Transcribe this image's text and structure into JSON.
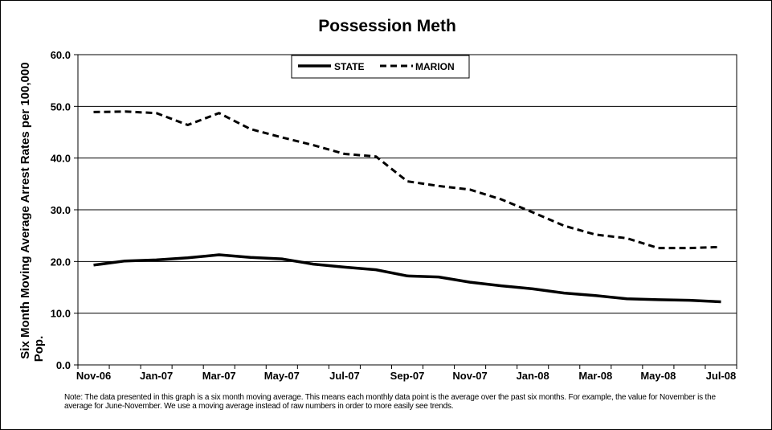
{
  "chart_data": {
    "type": "line",
    "title": "Possession Meth",
    "ylabel": "Six Month Moving Average Arrest Rates per 100,000 Pop.",
    "ylim": [
      0,
      60
    ],
    "yticks": [
      "0.0",
      "10.0",
      "20.0",
      "30.0",
      "40.0",
      "50.0",
      "60.0"
    ],
    "grid": true,
    "legend_position": "top-center",
    "x": [
      "Nov-06",
      "Dec-06",
      "Jan-07",
      "Feb-07",
      "Mar-07",
      "Apr-07",
      "May-07",
      "Jun-07",
      "Jul-07",
      "Aug-07",
      "Sep-07",
      "Oct-07",
      "Nov-07",
      "Dec-07",
      "Jan-08",
      "Feb-08",
      "Mar-08",
      "Apr-08",
      "May-08",
      "Jun-08",
      "Jul-08"
    ],
    "xtick_labels": [
      "Nov-06",
      "",
      "Jan-07",
      "",
      "Mar-07",
      "",
      "May-07",
      "",
      "Jul-07",
      "",
      "Sep-07",
      "",
      "Nov-07",
      "",
      "Jan-08",
      "",
      "Mar-08",
      "",
      "May-08",
      "",
      "Jul-08"
    ],
    "series": [
      {
        "name": "STATE",
        "style": "solid",
        "color": "#000000",
        "values": [
          19.3,
          20.1,
          20.3,
          20.7,
          21.3,
          20.8,
          20.5,
          19.5,
          18.9,
          18.4,
          17.2,
          17.0,
          16.0,
          15.3,
          14.7,
          13.9,
          13.4,
          12.8,
          12.6,
          12.5,
          12.2
        ]
      },
      {
        "name": "MARION",
        "style": "dashed",
        "color": "#000000",
        "values": [
          48.9,
          49.0,
          48.7,
          46.4,
          48.7,
          45.6,
          44.0,
          42.5,
          40.8,
          40.3,
          35.5,
          34.6,
          33.9,
          32.0,
          29.5,
          26.9,
          25.2,
          24.5,
          22.6,
          22.6,
          22.8
        ]
      }
    ]
  },
  "note": "Note: The data presented in this graph is a six month moving average. This means each monthly data point is the average over the past six months. For example, the value for November is the average for June-November. We use a moving average instead of raw numbers in order to more easily see trends."
}
